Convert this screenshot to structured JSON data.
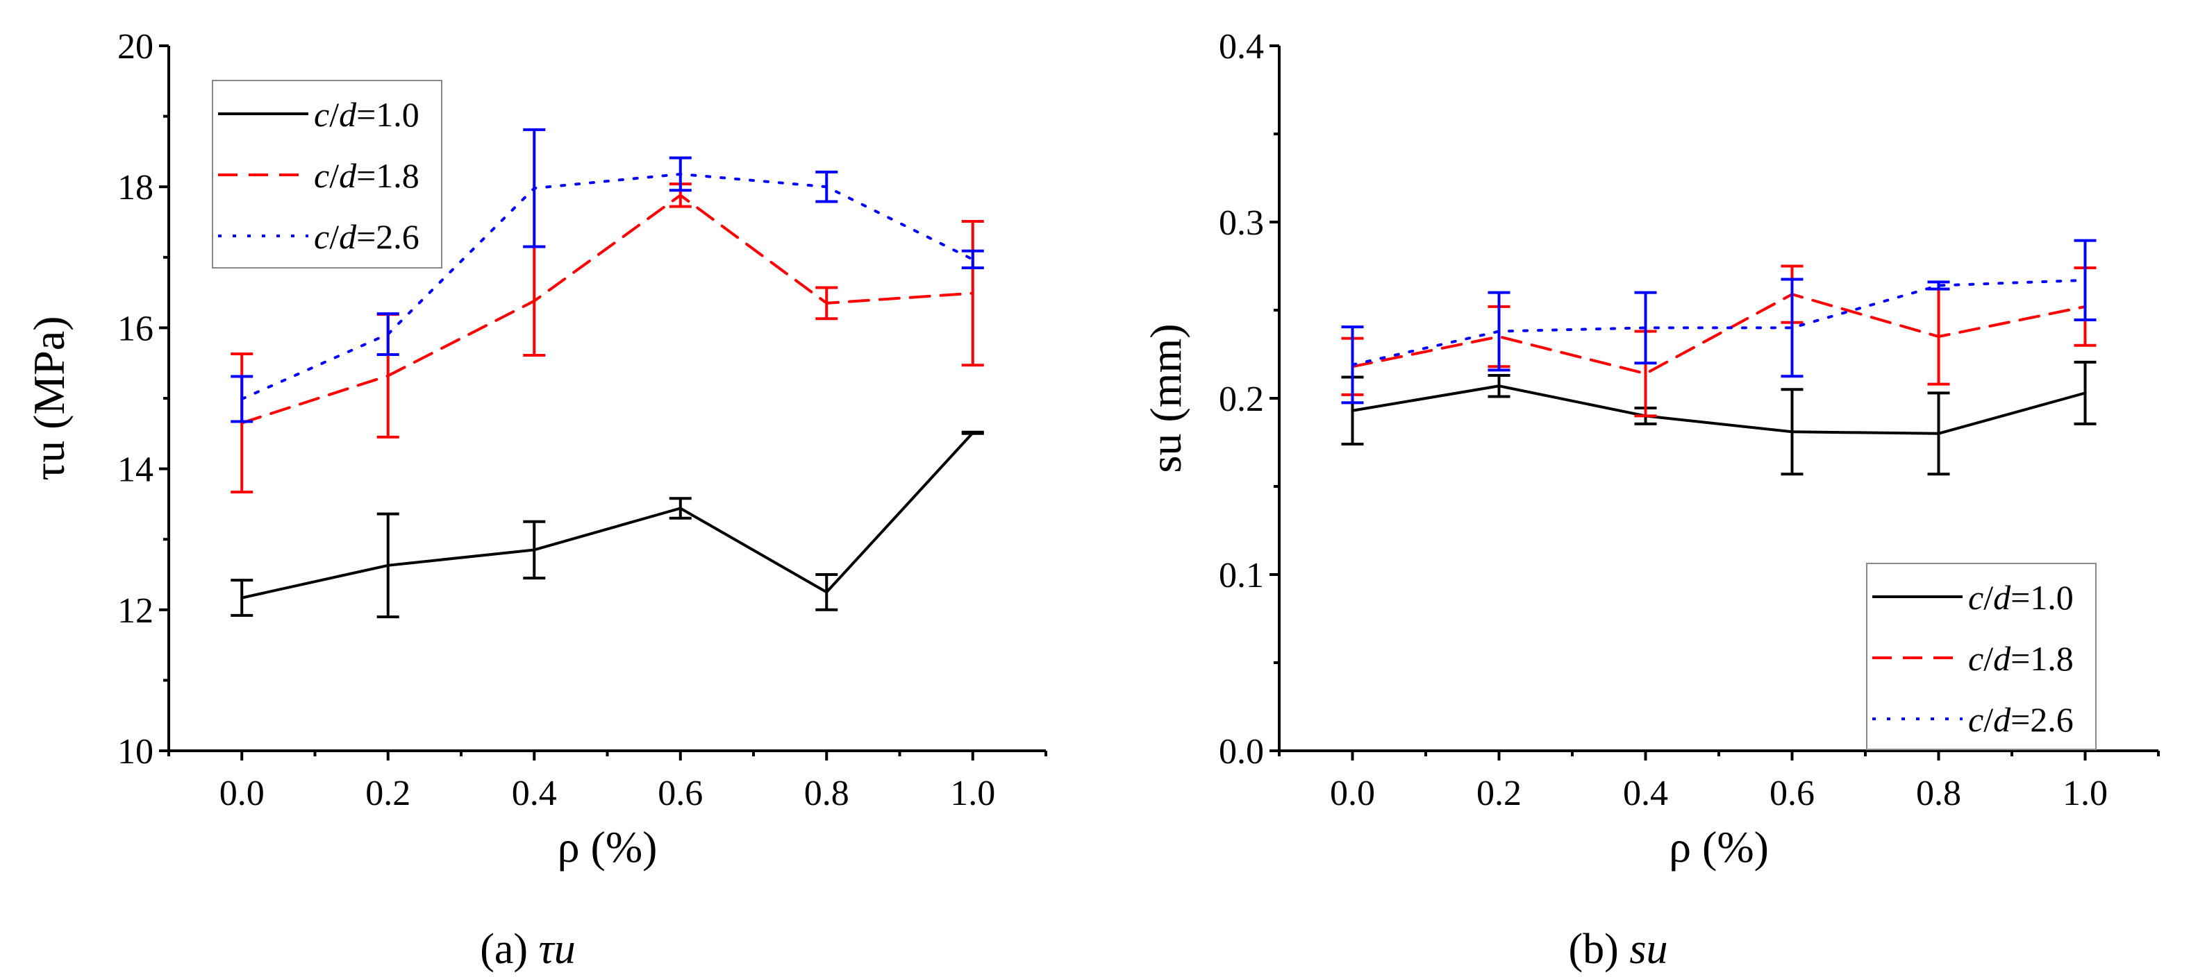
{
  "chart_data": [
    {
      "type": "line",
      "panel_caption": {
        "letter": "(a)",
        "symbol": "τu"
      },
      "xlabel": "ρ (%)",
      "ylabel": "τu (MPa)",
      "xlim": [
        -0.1,
        1.1
      ],
      "ylim": [
        10,
        20
      ],
      "xticks": [
        "0.0",
        "0.2",
        "0.4",
        "0.6",
        "0.8",
        "1.0"
      ],
      "yticks": [
        "10",
        "12",
        "14",
        "16",
        "18",
        "20"
      ],
      "legend_position": "top-left",
      "x": [
        0.0,
        0.2,
        0.4,
        0.6,
        0.8,
        1.0
      ],
      "series": [
        {
          "name": "c/d=1.0",
          "color": "#000000",
          "style": "solid",
          "values": [
            12.17,
            12.63,
            12.85,
            13.44,
            12.25,
            14.51
          ],
          "errors": [
            0.25,
            0.73,
            0.4,
            0.14,
            0.25,
            0.01
          ]
        },
        {
          "name": "c/d=1.8",
          "color": "#ff0000",
          "style": "dashed",
          "values": [
            14.65,
            15.32,
            16.38,
            17.88,
            16.35,
            16.49
          ],
          "errors": [
            0.98,
            0.87,
            0.77,
            0.16,
            0.22,
            1.02
          ]
        },
        {
          "name": "c/d=2.6",
          "color": "#0000ff",
          "style": "dotted",
          "values": [
            14.99,
            15.91,
            17.98,
            18.18,
            18.0,
            16.97
          ],
          "errors": [
            0.32,
            0.29,
            0.83,
            0.23,
            0.21,
            0.12
          ]
        }
      ]
    },
    {
      "type": "line",
      "panel_caption": {
        "letter": "(b)",
        "symbol": "su"
      },
      "xlabel": "ρ (%)",
      "ylabel": "su (mm)",
      "xlim": [
        -0.1,
        1.1
      ],
      "ylim": [
        0,
        0.4
      ],
      "xticks": [
        "0.0",
        "0.2",
        "0.4",
        "0.6",
        "0.8",
        "1.0"
      ],
      "yticks": [
        "0.0",
        "0.1",
        "0.2",
        "0.3",
        "0.4"
      ],
      "legend_position": "bottom-right",
      "x": [
        0.0,
        0.2,
        0.4,
        0.6,
        0.8,
        1.0
      ],
      "series": [
        {
          "name": "c/d=1.0",
          "color": "#000000",
          "style": "solid",
          "values": [
            0.193,
            0.207,
            0.19,
            0.181,
            0.18,
            0.203
          ],
          "errors": [
            0.019,
            0.006,
            0.0045,
            0.024,
            0.023,
            0.0175
          ]
        },
        {
          "name": "c/d=1.8",
          "color": "#ff0000",
          "style": "dashed",
          "values": [
            0.218,
            0.235,
            0.214,
            0.259,
            0.235,
            0.252
          ],
          "errors": [
            0.016,
            0.017,
            0.024,
            0.016,
            0.027,
            0.022
          ]
        },
        {
          "name": "c/d=2.6",
          "color": "#0000ff",
          "style": "dotted",
          "values": [
            0.219,
            0.238,
            0.24,
            0.24,
            0.264,
            0.267
          ],
          "errors": [
            0.0215,
            0.022,
            0.02,
            0.0275,
            0.002,
            0.0225
          ]
        }
      ]
    }
  ]
}
